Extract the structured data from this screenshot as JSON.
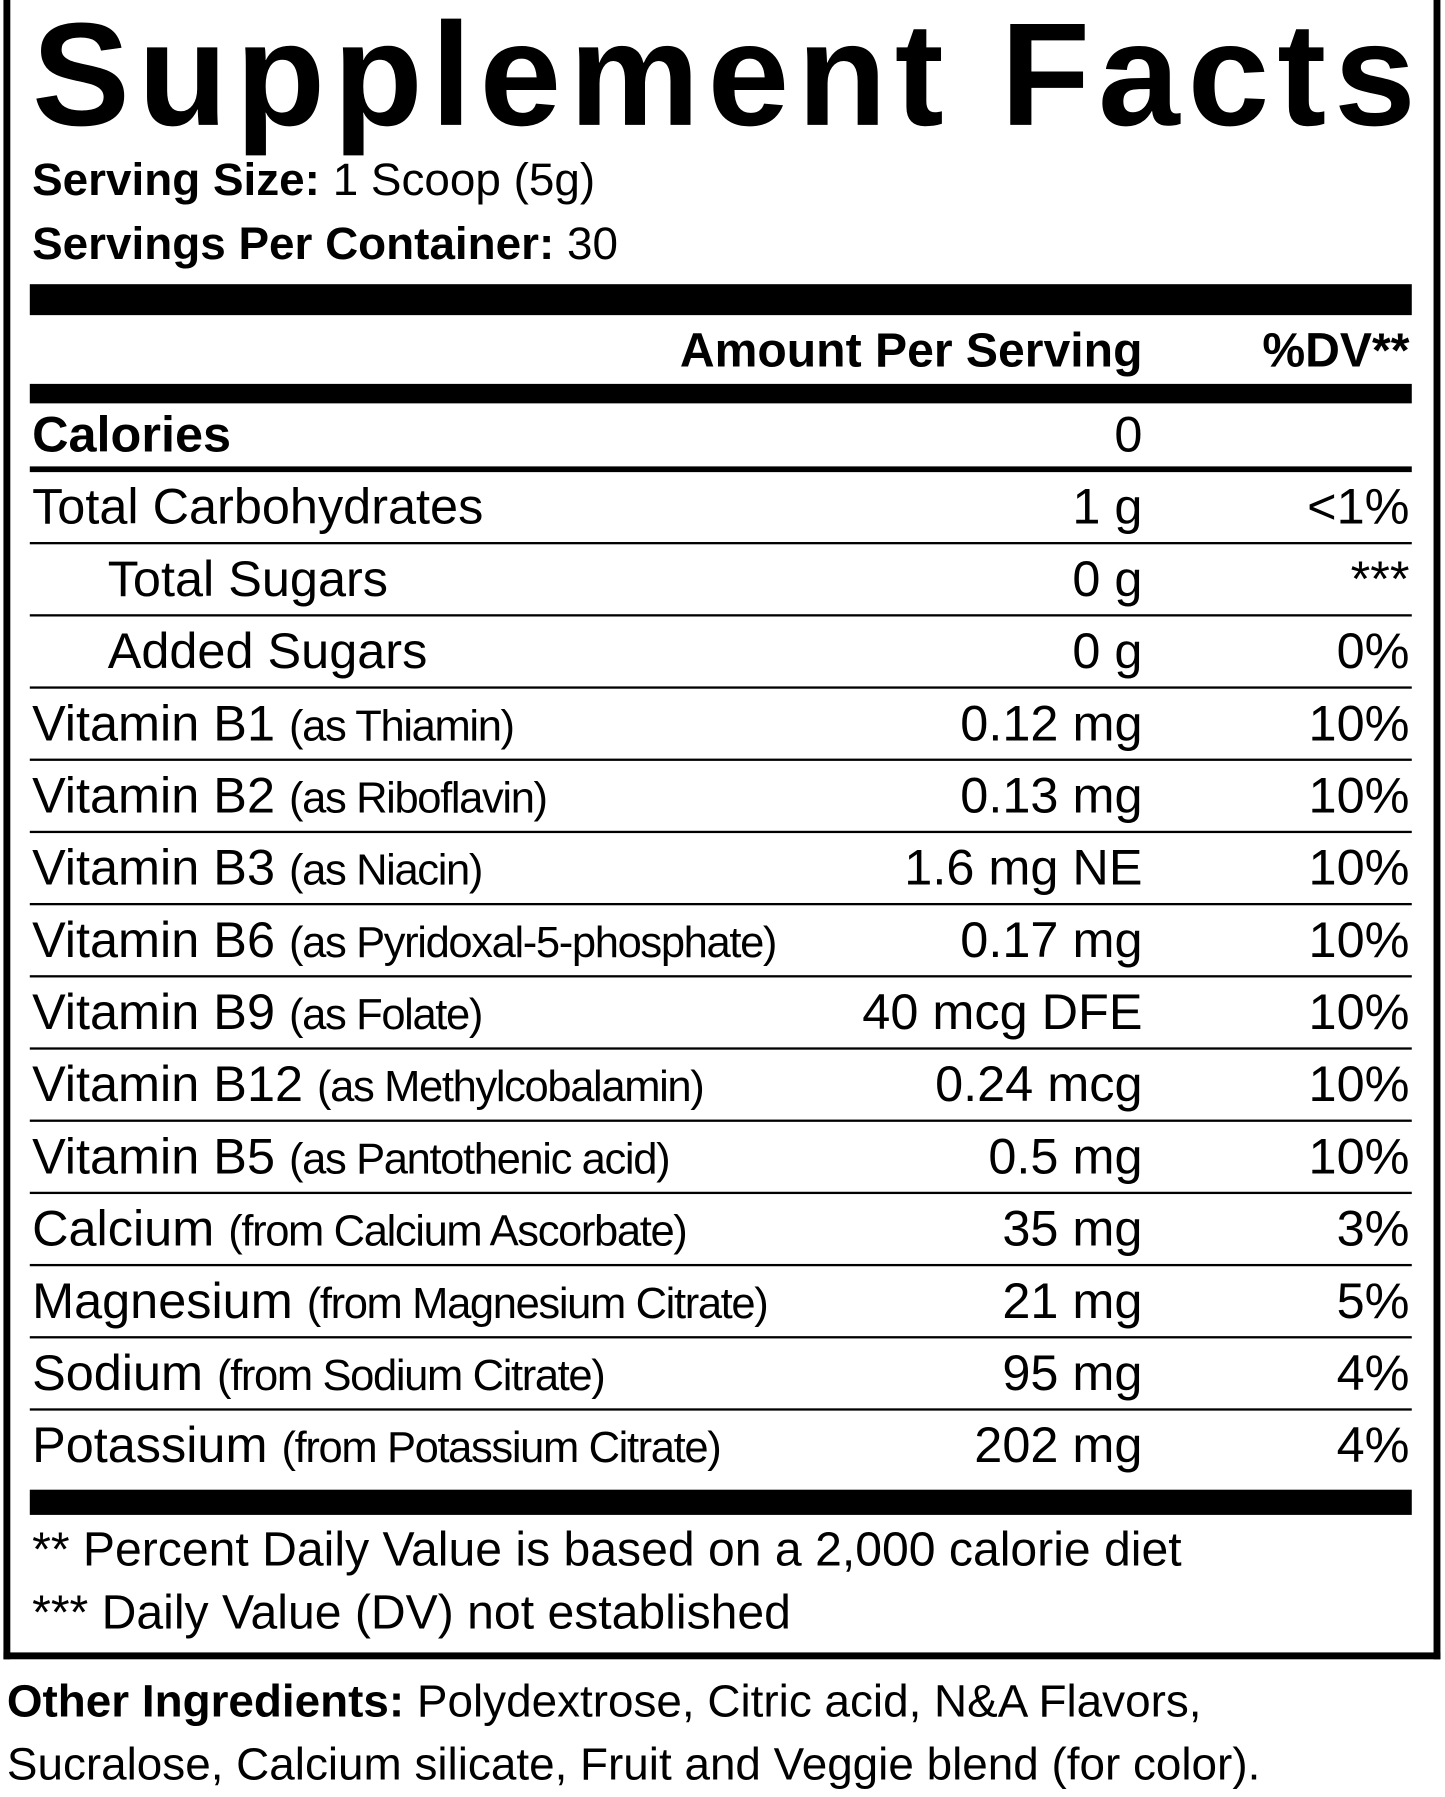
{
  "title": "Supplement Facts",
  "serving_size": {
    "label": "Serving Size:",
    "value": "1 Scoop (5g)"
  },
  "servings_per_container": {
    "label": "Servings Per Container:",
    "value": "30"
  },
  "table": {
    "header": {
      "amount": "Amount Per Serving",
      "dv": "%DV**"
    },
    "rows": [
      {
        "name": "Calories",
        "amount": "0",
        "bold": true
      },
      {
        "name": "Total Carbohydrates",
        "amount": "1 g",
        "dv": "<1%"
      },
      {
        "name": "Total Sugars",
        "amount": "0 g",
        "dv": "***",
        "indent": true
      },
      {
        "name": "Added Sugars",
        "amount": "0 g",
        "dv": "0%",
        "indent": true
      },
      {
        "name": "Vitamin B1",
        "qualifier": "(as Thiamin)",
        "amount": "0.12 mg",
        "dv": "10%"
      },
      {
        "name": "Vitamin B2",
        "qualifier": "(as Riboflavin)",
        "amount": "0.13 mg",
        "dv": "10%"
      },
      {
        "name": "Vitamin B3",
        "qualifier": "(as Niacin)",
        "amount": "1.6 mg NE",
        "dv": "10%"
      },
      {
        "name": "Vitamin B6",
        "qualifier": "(as Pyridoxal-5-phosphate)",
        "amount": "0.17 mg",
        "dv": "10%"
      },
      {
        "name": "Vitamin B9",
        "qualifier": "(as Folate)",
        "amount": "40 mcg DFE",
        "dv": "10%"
      },
      {
        "name": "Vitamin B12",
        "qualifier": "(as Methylcobalamin)",
        "amount": "0.24 mcg",
        "dv": "10%"
      },
      {
        "name": "Vitamin B5",
        "qualifier": "(as Pantothenic acid)",
        "amount": "0.5 mg",
        "dv": "10%"
      },
      {
        "name": "Calcium",
        "qualifier": "(from Calcium Ascorbate)",
        "amount": "35 mg",
        "dv": "3%"
      },
      {
        "name": "Magnesium",
        "qualifier": "(from Magnesium Citrate)",
        "amount": "21 mg",
        "dv": "5%"
      },
      {
        "name": "Sodium",
        "qualifier": "(from Sodium Citrate)",
        "amount": "95 mg",
        "dv": "4%"
      },
      {
        "name": "Potassium",
        "qualifier": "(from Potassium Citrate)",
        "amount": "202 mg",
        "dv": "4%"
      }
    ]
  },
  "footnotes": [
    "** Percent Daily Value is based on a 2,000 calorie diet",
    "*** Daily Value (DV) not established"
  ],
  "other_ingredients": {
    "label": "Other Ingredients:",
    "lines": [
      "Polydextrose, Citric acid, N&A Flavors,",
      "Sucralose, Calcium silicate, Fruit and Veggie blend (for color)."
    ]
  }
}
